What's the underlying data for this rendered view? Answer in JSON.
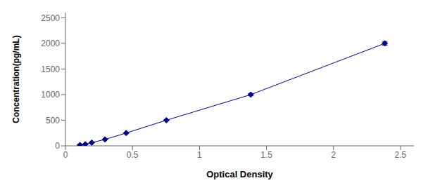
{
  "chart_data": {
    "type": "line",
    "x": [
      0.108,
      0.148,
      0.196,
      0.295,
      0.453,
      0.753,
      1.383,
      2.383
    ],
    "values": [
      15.6,
      31.25,
      62.5,
      125,
      250,
      500,
      1000,
      2000
    ],
    "errors": [
      0.2808,
      0.5625,
      1.125,
      2.25,
      4.5,
      9,
      18,
      36
    ],
    "color": "#00008B",
    "marker": "diamond",
    "line_style": "solid",
    "xlabel": "Optical Density",
    "ylabel": "Concentration(pg/mL)",
    "xlim": [
      0.0,
      2.6
    ],
    "ylim": [
      0,
      2600
    ],
    "xticks": [
      0,
      0.5,
      1,
      1.5,
      2,
      2.5
    ],
    "yticks": [
      0,
      500,
      1000,
      1500,
      2000,
      2500
    ],
    "grid": false
  }
}
